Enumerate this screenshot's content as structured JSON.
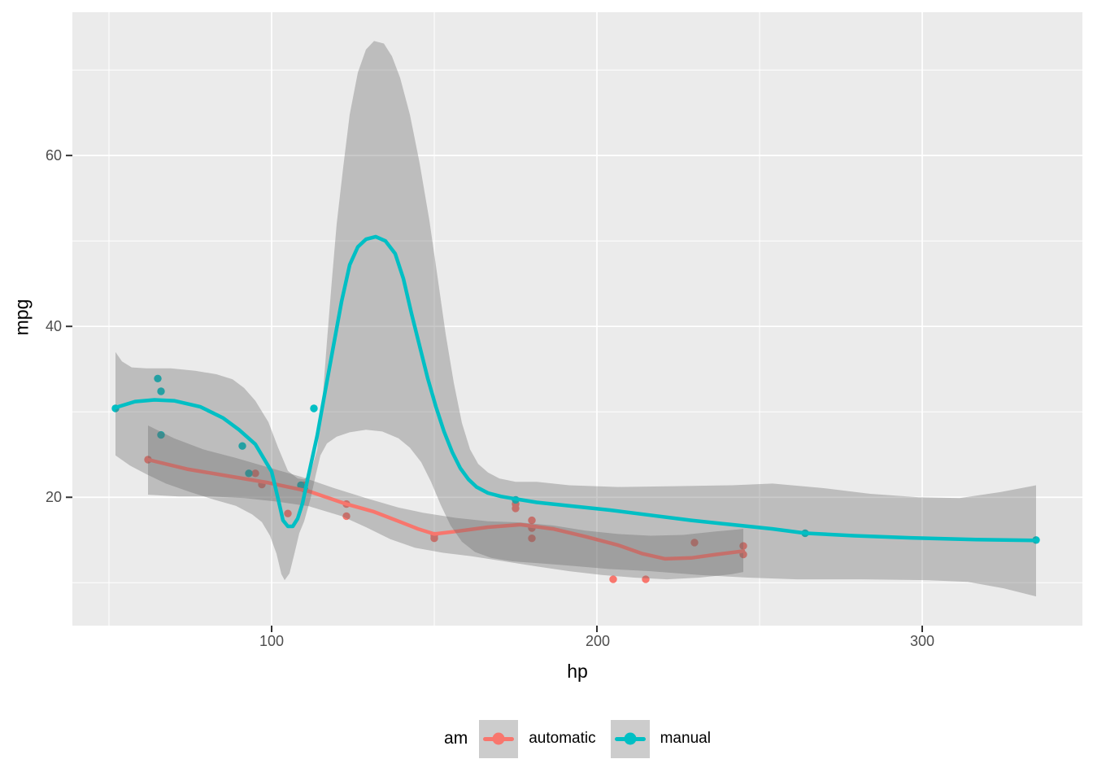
{
  "chart_data": {
    "type": "scatter",
    "title": "",
    "xlabel": "hp",
    "ylabel": "mpg",
    "xlim": [
      38.75,
      349.25
    ],
    "ylim": [
      4.98,
      76.77
    ],
    "x_tick_values": [
      100,
      200,
      300
    ],
    "x_tick_labels": [
      "100",
      "200",
      "300"
    ],
    "y_tick_values": [
      20,
      40,
      60
    ],
    "y_tick_labels": [
      "20",
      "40",
      "60"
    ],
    "x_minor_ticks": [
      50,
      150,
      250,
      350
    ],
    "y_minor_ticks": [
      10,
      30,
      50,
      70
    ],
    "grid": true,
    "legend": {
      "title": "am",
      "position": "bottom",
      "entries": [
        {
          "label": "automatic",
          "color": "#F8766D"
        },
        {
          "label": "manual",
          "color": "#00BFC4"
        }
      ]
    },
    "colors": {
      "panel_bg": "#EBEBEB",
      "grid": "#FFFFFF",
      "ribbon": "rgba(102,102,102,0.35)",
      "tick_mark": "#333333",
      "tick_label": "#4D4D4D",
      "legend_key_bg": "#CCCCCC"
    },
    "series": [
      {
        "name": "automatic",
        "color": "#F8766D",
        "points": [
          [
            110,
            21.4
          ],
          [
            175,
            18.7
          ],
          [
            105,
            18.1
          ],
          [
            245,
            14.3
          ],
          [
            62,
            24.4
          ],
          [
            95,
            22.8
          ],
          [
            123,
            19.2
          ],
          [
            123,
            17.8
          ],
          [
            180,
            16.4
          ],
          [
            180,
            17.3
          ],
          [
            180,
            15.2
          ],
          [
            205,
            10.4
          ],
          [
            215,
            10.4
          ],
          [
            230,
            14.7
          ],
          [
            97,
            21.5
          ],
          [
            150,
            15.5
          ],
          [
            150,
            15.2
          ],
          [
            245,
            13.3
          ],
          [
            175,
            19.2
          ]
        ],
        "smooth": [
          [
            62,
            24.4
          ],
          [
            74,
            23.3
          ],
          [
            86.5,
            22.5
          ],
          [
            99,
            21.7
          ],
          [
            111.5,
            20.7
          ],
          [
            123,
            19.2
          ],
          [
            131.5,
            18.3
          ],
          [
            139,
            17.2
          ],
          [
            145,
            16.3
          ],
          [
            150,
            15.7
          ],
          [
            156.5,
            16.0
          ],
          [
            166.5,
            16.5
          ],
          [
            176.5,
            16.8
          ],
          [
            186.5,
            16.3
          ],
          [
            196.5,
            15.4
          ],
          [
            206.5,
            14.4
          ],
          [
            214,
            13.4
          ],
          [
            221,
            12.8
          ],
          [
            229,
            12.9
          ],
          [
            236.5,
            13.3
          ],
          [
            245,
            13.7
          ]
        ],
        "ribbon_upper": [
          [
            62,
            28.4
          ],
          [
            70,
            26.9
          ],
          [
            79,
            25.6
          ],
          [
            89,
            24.6
          ],
          [
            99,
            23.5
          ],
          [
            109,
            22.4
          ],
          [
            119,
            21.1
          ],
          [
            129,
            19.9
          ],
          [
            139,
            18.8
          ],
          [
            146.5,
            18.2
          ],
          [
            156.5,
            17.6
          ],
          [
            166.5,
            17.2
          ],
          [
            176.5,
            17.05
          ],
          [
            186.5,
            16.7
          ],
          [
            196.5,
            16.1
          ],
          [
            206.5,
            15.7
          ],
          [
            216.5,
            15.5
          ],
          [
            226.5,
            15.6
          ],
          [
            236.5,
            16.0
          ],
          [
            245,
            16.3
          ]
        ],
        "ribbon_lower": [
          [
            62,
            20.3
          ],
          [
            71.5,
            20.1
          ],
          [
            81.5,
            20.1
          ],
          [
            91.5,
            19.9
          ],
          [
            101.5,
            19.5
          ],
          [
            111.5,
            18.95
          ],
          [
            121.5,
            17.8
          ],
          [
            129,
            16.5
          ],
          [
            136.5,
            15.1
          ],
          [
            144,
            14.1
          ],
          [
            152.75,
            13.5
          ],
          [
            161.5,
            13.1
          ],
          [
            171.5,
            12.5
          ],
          [
            181.5,
            11.9
          ],
          [
            191.5,
            11.35
          ],
          [
            201.5,
            10.9
          ],
          [
            211.5,
            10.6
          ],
          [
            221.5,
            10.4
          ],
          [
            231.5,
            10.6
          ],
          [
            241.5,
            11.0
          ],
          [
            245,
            11.25
          ]
        ]
      },
      {
        "name": "manual",
        "color": "#00BFC4",
        "points": [
          [
            110,
            21.0
          ],
          [
            110,
            21.0
          ],
          [
            93,
            22.8
          ],
          [
            66,
            32.4
          ],
          [
            52,
            30.4
          ],
          [
            65,
            33.9
          ],
          [
            66,
            27.3
          ],
          [
            91,
            26.0
          ],
          [
            113,
            30.4
          ],
          [
            264,
            15.8
          ],
          [
            175,
            19.7
          ],
          [
            335,
            15.0
          ],
          [
            109,
            21.4
          ]
        ],
        "smooth": [
          [
            52,
            30.5
          ],
          [
            58,
            31.2
          ],
          [
            64,
            31.4
          ],
          [
            70,
            31.3
          ],
          [
            78,
            30.6
          ],
          [
            85,
            29.3
          ],
          [
            90,
            27.9
          ],
          [
            95,
            26.2
          ],
          [
            100,
            23.0
          ],
          [
            102,
            19.8
          ],
          [
            103.5,
            17.3
          ],
          [
            105,
            16.6
          ],
          [
            106.5,
            16.6
          ],
          [
            108,
            17.5
          ],
          [
            109.5,
            19.3
          ],
          [
            111,
            22.0
          ],
          [
            112.5,
            24.6
          ],
          [
            114,
            27.2
          ],
          [
            116.5,
            32.5
          ],
          [
            119,
            37.7
          ],
          [
            121.5,
            42.9
          ],
          [
            124,
            47.2
          ],
          [
            126.5,
            49.3
          ],
          [
            129,
            50.2
          ],
          [
            132,
            50.5
          ],
          [
            135,
            50.0
          ],
          [
            138,
            48.5
          ],
          [
            140.5,
            45.6
          ],
          [
            143,
            41.5
          ],
          [
            145.5,
            37.7
          ],
          [
            148,
            33.9
          ],
          [
            150.5,
            30.6
          ],
          [
            153,
            27.7
          ],
          [
            155.5,
            25.3
          ],
          [
            158,
            23.4
          ],
          [
            160.5,
            22.1
          ],
          [
            163,
            21.2
          ],
          [
            166.5,
            20.5
          ],
          [
            170.5,
            20.1
          ],
          [
            175,
            19.8
          ],
          [
            181.5,
            19.4
          ],
          [
            191.5,
            19.0
          ],
          [
            204,
            18.5
          ],
          [
            216.5,
            17.9
          ],
          [
            229,
            17.3
          ],
          [
            241.5,
            16.8
          ],
          [
            254,
            16.3
          ],
          [
            264,
            15.8
          ],
          [
            279,
            15.5
          ],
          [
            296.5,
            15.25
          ],
          [
            316.5,
            15.05
          ],
          [
            335,
            14.95
          ]
        ],
        "ribbon_upper": [
          [
            52,
            37.0
          ],
          [
            54,
            35.9
          ],
          [
            57,
            35.2
          ],
          [
            61.5,
            35.1
          ],
          [
            69,
            35.1
          ],
          [
            76.5,
            34.8
          ],
          [
            83,
            34.4
          ],
          [
            88,
            33.8
          ],
          [
            91.5,
            32.8
          ],
          [
            95,
            31.3
          ],
          [
            99,
            28.8
          ],
          [
            102,
            25.8
          ],
          [
            105,
            23.1
          ],
          [
            108,
            22.2
          ],
          [
            110,
            22.1
          ],
          [
            112,
            22.9
          ],
          [
            114,
            25.6
          ],
          [
            115.5,
            30.6
          ],
          [
            117,
            38.2
          ],
          [
            118.5,
            45.3
          ],
          [
            120,
            52.0
          ],
          [
            122,
            58.6
          ],
          [
            124,
            64.8
          ],
          [
            126.5,
            69.7
          ],
          [
            129,
            72.4
          ],
          [
            131.5,
            73.4
          ],
          [
            134.5,
            73.1
          ],
          [
            137,
            71.6
          ],
          [
            139.5,
            69.1
          ],
          [
            142.5,
            64.8
          ],
          [
            145.5,
            59.1
          ],
          [
            148.5,
            52.4
          ],
          [
            151,
            45.8
          ],
          [
            153.5,
            39.1
          ],
          [
            156,
            33.4
          ],
          [
            158.5,
            28.7
          ],
          [
            161,
            25.6
          ],
          [
            163.5,
            23.9
          ],
          [
            166.5,
            22.9
          ],
          [
            170,
            22.2
          ],
          [
            175,
            21.8
          ],
          [
            181.5,
            21.8
          ],
          [
            191.5,
            21.4
          ],
          [
            206.5,
            21.2
          ],
          [
            224,
            21.3
          ],
          [
            241.5,
            21.4
          ],
          [
            254,
            21.6
          ],
          [
            269,
            21.1
          ],
          [
            284,
            20.4
          ],
          [
            299,
            20.0
          ],
          [
            311.5,
            19.9
          ],
          [
            324,
            20.6
          ],
          [
            335,
            21.4
          ]
        ],
        "ribbon_lower": [
          [
            52,
            24.9
          ],
          [
            56.5,
            23.7
          ],
          [
            61.5,
            22.7
          ],
          [
            67.5,
            21.6
          ],
          [
            75,
            20.6
          ],
          [
            82.5,
            19.7
          ],
          [
            89,
            19.0
          ],
          [
            94,
            18.0
          ],
          [
            97,
            17.1
          ],
          [
            99.5,
            15.5
          ],
          [
            101.5,
            13.4
          ],
          [
            103,
            11.0
          ],
          [
            104,
            10.3
          ],
          [
            105.5,
            11.1
          ],
          [
            107,
            13.4
          ],
          [
            108.5,
            15.8
          ],
          [
            110,
            17.2
          ],
          [
            112,
            19.9
          ],
          [
            113.5,
            22.5
          ],
          [
            115,
            24.9
          ],
          [
            117,
            26.3
          ],
          [
            120,
            27.1
          ],
          [
            124,
            27.6
          ],
          [
            129,
            27.9
          ],
          [
            134,
            27.7
          ],
          [
            139,
            26.9
          ],
          [
            142.5,
            25.8
          ],
          [
            146,
            24.1
          ],
          [
            149,
            21.8
          ],
          [
            152,
            19.1
          ],
          [
            155,
            16.7
          ],
          [
            158.5,
            14.8
          ],
          [
            162.5,
            13.6
          ],
          [
            167.5,
            12.9
          ],
          [
            174,
            12.5
          ],
          [
            181.5,
            12.3
          ],
          [
            191.5,
            12.0
          ],
          [
            204,
            11.6
          ],
          [
            216.5,
            11.35
          ],
          [
            231.5,
            10.9
          ],
          [
            246.5,
            10.6
          ],
          [
            261.5,
            10.4
          ],
          [
            281.5,
            10.4
          ],
          [
            301.5,
            10.3
          ],
          [
            314,
            10.1
          ],
          [
            325,
            9.35
          ],
          [
            335,
            8.4
          ]
        ]
      }
    ]
  }
}
